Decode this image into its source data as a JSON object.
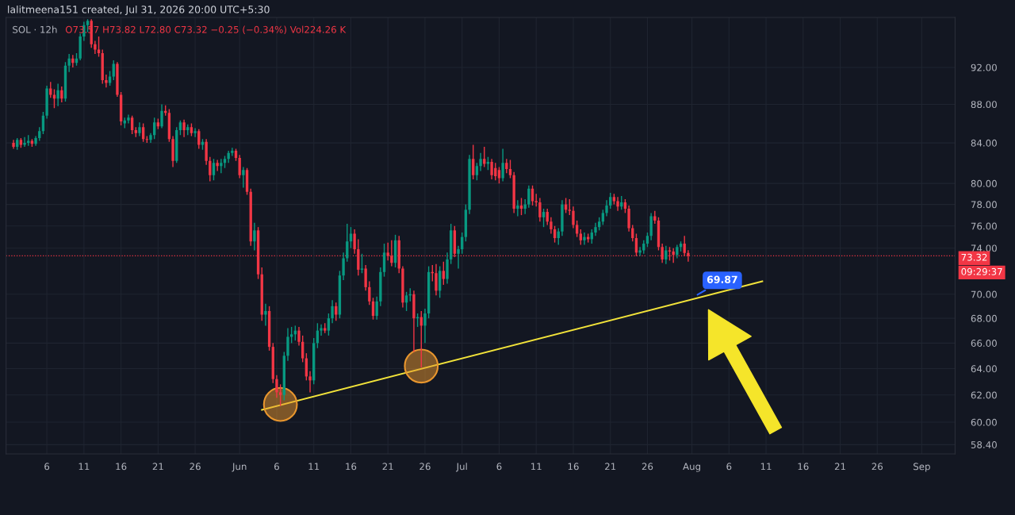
{
  "chart_data": {
    "type": "candlestick",
    "title": "SOL · 12h",
    "subtitle": "O73.57 H73.82 L72.80 C73.32 −0.25 (−0.34%) Vol224.26 K",
    "x": [
      "2026-05-01T12:00",
      "2026-05-02T00:00",
      "2026-05-02T12:00",
      "2026-05-03T00:00",
      "2026-05-03T12:00",
      "2026-05-04T00:00",
      "2026-05-04T12:00",
      "2026-05-05T00:00",
      "2026-05-05T12:00",
      "2026-05-06T00:00",
      "2026-05-06T12:00",
      "2026-05-07T00:00",
      "2026-05-07T12:00",
      "2026-05-08T00:00",
      "2026-05-08T12:00",
      "2026-05-09T00:00",
      "2026-05-09T12:00",
      "2026-05-10T00:00",
      "2026-05-10T12:00",
      "2026-05-11T00:00",
      "2026-05-11T12:00",
      "2026-05-12T00:00",
      "2026-05-12T12:00",
      "2026-05-13T00:00",
      "2026-05-13T12:00",
      "2026-05-14T00:00",
      "2026-05-14T12:00",
      "2026-05-15T00:00",
      "2026-05-15T12:00",
      "2026-05-16T00:00",
      "2026-05-16T12:00",
      "2026-05-17T00:00",
      "2026-05-17T12:00",
      "2026-05-18T00:00",
      "2026-05-18T12:00",
      "2026-05-19T00:00",
      "2026-05-19T12:00",
      "2026-05-20T00:00",
      "2026-05-20T12:00",
      "2026-05-21T00:00",
      "2026-05-21T12:00",
      "2026-05-22T00:00",
      "2026-05-22T12:00",
      "2026-05-23T00:00",
      "2026-05-23T12:00",
      "2026-05-24T00:00",
      "2026-05-24T12:00",
      "2026-05-25T00:00",
      "2026-05-25T12:00",
      "2026-05-26T00:00",
      "2026-05-26T12:00",
      "2026-05-27T00:00",
      "2026-05-27T12:00",
      "2026-05-28T00:00",
      "2026-05-28T12:00",
      "2026-05-29T00:00",
      "2026-05-29T12:00",
      "2026-05-30T00:00",
      "2026-05-30T12:00",
      "2026-05-31T00:00",
      "2026-05-31T12:00",
      "2026-06-01T00:00",
      "2026-06-01T12:00",
      "2026-06-02T00:00",
      "2026-06-02T12:00",
      "2026-06-03T00:00",
      "2026-06-03T12:00",
      "2026-06-04T00:00",
      "2026-06-04T12:00",
      "2026-06-05T00:00",
      "2026-06-05T12:00",
      "2026-06-06T00:00",
      "2026-06-06T12:00",
      "2026-06-07T00:00",
      "2026-06-07T12:00",
      "2026-06-08T00:00",
      "2026-06-08T12:00",
      "2026-06-09T00:00",
      "2026-06-09T12:00",
      "2026-06-10T00:00",
      "2026-06-10T12:00",
      "2026-06-11T00:00",
      "2026-06-11T12:00",
      "2026-06-12T00:00",
      "2026-06-12T12:00",
      "2026-06-13T00:00",
      "2026-06-13T12:00",
      "2026-06-14T00:00",
      "2026-06-14T12:00",
      "2026-06-15T00:00",
      "2026-06-15T12:00",
      "2026-06-16T00:00",
      "2026-06-16T12:00",
      "2026-06-17T00:00",
      "2026-06-17T12:00",
      "2026-06-18T00:00",
      "2026-06-18T12:00",
      "2026-06-19T00:00",
      "2026-06-19T12:00",
      "2026-06-20T00:00",
      "2026-06-20T12:00",
      "2026-06-21T00:00",
      "2026-06-21T12:00",
      "2026-06-22T00:00",
      "2026-06-22T12:00",
      "2026-06-23T00:00",
      "2026-06-23T12:00",
      "2026-06-24T00:00",
      "2026-06-24T12:00",
      "2026-06-25T00:00",
      "2026-06-25T12:00",
      "2026-06-26T00:00",
      "2026-06-26T12:00",
      "2026-06-27T00:00",
      "2026-06-27T12:00",
      "2026-06-28T00:00",
      "2026-06-28T12:00",
      "2026-06-29T00:00",
      "2026-06-29T12:00",
      "2026-06-30T00:00",
      "2026-06-30T12:00",
      "2026-07-01T00:00",
      "2026-07-01T12:00",
      "2026-07-02T00:00",
      "2026-07-02T12:00",
      "2026-07-03T00:00",
      "2026-07-03T12:00",
      "2026-07-04T00:00",
      "2026-07-04T12:00",
      "2026-07-05T00:00",
      "2026-07-05T12:00",
      "2026-07-06T00:00",
      "2026-07-06T12:00",
      "2026-07-07T00:00",
      "2026-07-07T12:00",
      "2026-07-08T00:00",
      "2026-07-08T12:00",
      "2026-07-09T00:00",
      "2026-07-09T12:00",
      "2026-07-10T00:00",
      "2026-07-10T12:00",
      "2026-07-11T00:00",
      "2026-07-11T12:00",
      "2026-07-12T00:00",
      "2026-07-12T12:00",
      "2026-07-13T00:00",
      "2026-07-13T12:00",
      "2026-07-14T00:00",
      "2026-07-14T12:00",
      "2026-07-15T00:00",
      "2026-07-15T12:00",
      "2026-07-16T00:00",
      "2026-07-16T12:00",
      "2026-07-17T00:00",
      "2026-07-17T12:00",
      "2026-07-18T00:00",
      "2026-07-18T12:00",
      "2026-07-19T00:00",
      "2026-07-19T12:00",
      "2026-07-20T00:00",
      "2026-07-20T12:00",
      "2026-07-21T00:00",
      "2026-07-21T12:00",
      "2026-07-22T00:00",
      "2026-07-22T12:00",
      "2026-07-23T00:00",
      "2026-07-23T12:00",
      "2026-07-24T00:00",
      "2026-07-24T12:00",
      "2026-07-25T00:00",
      "2026-07-25T12:00",
      "2026-07-26T00:00",
      "2026-07-26T12:00",
      "2026-07-27T00:00",
      "2026-07-27T12:00",
      "2026-07-28T00:00",
      "2026-07-28T12:00",
      "2026-07-29T00:00",
      "2026-07-29T12:00",
      "2026-07-30T00:00",
      "2026-07-30T12:00",
      "2026-07-31T00:00",
      "2026-07-31T12:00"
    ],
    "ohlc": [
      [
        84.0,
        84.3,
        83.4,
        83.6
      ],
      [
        83.6,
        84.5,
        83.3,
        84.3
      ],
      [
        84.3,
        84.5,
        83.5,
        83.8
      ],
      [
        83.8,
        84.6,
        83.6,
        84.0
      ],
      [
        84.0,
        84.8,
        83.7,
        84.2
      ],
      [
        84.2,
        84.4,
        83.6,
        83.9
      ],
      [
        83.9,
        84.7,
        83.7,
        84.5
      ],
      [
        84.5,
        85.6,
        84.2,
        85.2
      ],
      [
        85.2,
        87.2,
        84.9,
        86.8
      ],
      [
        86.8,
        90.0,
        86.5,
        89.7
      ],
      [
        89.7,
        90.4,
        88.7,
        89.0
      ],
      [
        89.0,
        89.6,
        87.6,
        88.6
      ],
      [
        88.6,
        90.2,
        87.8,
        89.5
      ],
      [
        89.5,
        89.9,
        88.2,
        88.6
      ],
      [
        88.6,
        92.6,
        88.3,
        92.2
      ],
      [
        92.2,
        93.5,
        91.5,
        93.0
      ],
      [
        93.0,
        93.4,
        92.0,
        92.5
      ],
      [
        92.5,
        93.6,
        92.2,
        93.0
      ],
      [
        93.0,
        95.8,
        92.8,
        95.5
      ],
      [
        95.5,
        97.2,
        95.0,
        96.8
      ],
      [
        96.8,
        97.5,
        96.0,
        97.3
      ],
      [
        97.3,
        97.5,
        94.2,
        94.6
      ],
      [
        94.6,
        95.0,
        93.5,
        94.0
      ],
      [
        94.0,
        95.5,
        93.2,
        93.6
      ],
      [
        93.6,
        94.0,
        90.2,
        90.6
      ],
      [
        90.6,
        91.2,
        89.8,
        90.3
      ],
      [
        90.3,
        91.6,
        90.0,
        91.0
      ],
      [
        91.0,
        92.8,
        90.6,
        92.4
      ],
      [
        92.4,
        92.6,
        88.8,
        89.0
      ],
      [
        89.0,
        89.3,
        85.8,
        86.2
      ],
      [
        86.0,
        86.6,
        85.5,
        86.3
      ],
      [
        86.3,
        86.9,
        86.0,
        86.6
      ],
      [
        86.6,
        86.8,
        84.9,
        85.3
      ],
      [
        85.3,
        85.6,
        84.6,
        85.0
      ],
      [
        85.0,
        86.1,
        84.7,
        85.6
      ],
      [
        85.6,
        86.0,
        84.1,
        84.4
      ],
      [
        84.4,
        84.7,
        84.0,
        84.3
      ],
      [
        84.3,
        85.0,
        84.0,
        84.8
      ],
      [
        84.8,
        86.6,
        84.4,
        86.1
      ],
      [
        86.1,
        86.5,
        85.4,
        85.7
      ],
      [
        85.7,
        88.0,
        85.5,
        87.3
      ],
      [
        87.3,
        87.9,
        86.8,
        87.1
      ],
      [
        87.1,
        87.5,
        84.1,
        84.4
      ],
      [
        84.4,
        84.7,
        81.6,
        82.2
      ],
      [
        82.2,
        85.6,
        82.0,
        85.3
      ],
      [
        85.3,
        86.3,
        84.8,
        86.1
      ],
      [
        86.1,
        86.4,
        84.6,
        85.3
      ],
      [
        85.3,
        85.9,
        84.8,
        85.6
      ],
      [
        85.6,
        86.0,
        84.7,
        85.0
      ],
      [
        85.0,
        85.5,
        84.6,
        85.2
      ],
      [
        85.2,
        85.4,
        83.4,
        83.8
      ],
      [
        83.8,
        84.4,
        83.3,
        84.1
      ],
      [
        84.1,
        84.4,
        81.8,
        82.2
      ],
      [
        82.2,
        82.6,
        80.2,
        80.8
      ],
      [
        80.8,
        82.4,
        80.3,
        82.0
      ],
      [
        82.0,
        82.3,
        81.2,
        81.7
      ],
      [
        81.7,
        82.4,
        81.0,
        82.0
      ],
      [
        82.0,
        82.7,
        81.5,
        82.4
      ],
      [
        82.4,
        83.2,
        82.0,
        83.0
      ],
      [
        83.0,
        83.5,
        82.7,
        83.2
      ],
      [
        83.2,
        83.4,
        82.2,
        82.5
      ],
      [
        82.5,
        82.8,
        80.5,
        80.8
      ],
      [
        80.8,
        81.6,
        79.6,
        81.3
      ],
      [
        81.3,
        81.5,
        78.9,
        79.2
      ],
      [
        79.2,
        79.5,
        74.2,
        74.6
      ],
      [
        74.6,
        76.3,
        73.8,
        75.6
      ],
      [
        75.6,
        75.9,
        71.3,
        71.7
      ],
      [
        71.7,
        72.3,
        67.8,
        68.3
      ],
      [
        68.3,
        69.2,
        67.4,
        68.6
      ],
      [
        68.6,
        69.0,
        65.4,
        65.7
      ],
      [
        65.7,
        66.0,
        62.9,
        63.2
      ],
      [
        63.2,
        63.5,
        61.8,
        62.2
      ],
      [
        62.2,
        62.8,
        61.2,
        62.0
      ],
      [
        62.0,
        65.3,
        61.6,
        65.0
      ],
      [
        65.0,
        67.2,
        64.6,
        66.5
      ],
      [
        66.5,
        67.3,
        66.0,
        66.7
      ],
      [
        66.7,
        67.4,
        66.2,
        67.0
      ],
      [
        67.0,
        67.3,
        65.8,
        66.1
      ],
      [
        66.1,
        66.6,
        64.5,
        64.8
      ],
      [
        64.8,
        65.2,
        63.1,
        63.4
      ],
      [
        63.4,
        63.8,
        62.2,
        63.1
      ],
      [
        63.1,
        66.4,
        62.8,
        66.0
      ],
      [
        66.0,
        67.6,
        65.6,
        67.0
      ],
      [
        67.0,
        67.5,
        66.6,
        67.2
      ],
      [
        67.2,
        67.6,
        66.8,
        67.0
      ],
      [
        67.0,
        68.4,
        66.6,
        68.0
      ],
      [
        68.0,
        69.5,
        67.6,
        69.0
      ],
      [
        69.0,
        69.3,
        67.8,
        68.3
      ],
      [
        68.3,
        72.0,
        68.0,
        71.6
      ],
      [
        71.6,
        73.6,
        71.2,
        73.1
      ],
      [
        73.1,
        76.2,
        72.8,
        74.6
      ],
      [
        74.6,
        75.9,
        74.0,
        75.3
      ],
      [
        75.3,
        75.7,
        73.5,
        73.9
      ],
      [
        73.9,
        74.8,
        71.6,
        72.1
      ],
      [
        72.1,
        73.5,
        71.8,
        72.2
      ],
      [
        72.2,
        72.5,
        70.3,
        70.6
      ],
      [
        70.6,
        71.1,
        69.1,
        69.4
      ],
      [
        69.4,
        69.7,
        67.9,
        68.2
      ],
      [
        68.2,
        69.8,
        67.9,
        69.4
      ],
      [
        69.4,
        72.3,
        69.0,
        71.9
      ],
      [
        71.9,
        74.4,
        71.5,
        73.6
      ],
      [
        73.6,
        74.5,
        72.9,
        73.3
      ],
      [
        73.3,
        74.7,
        72.4,
        72.7
      ],
      [
        72.7,
        75.2,
        72.3,
        74.7
      ],
      [
        74.7,
        75.1,
        71.8,
        72.2
      ],
      [
        72.2,
        72.4,
        68.9,
        69.3
      ],
      [
        69.3,
        70.2,
        68.6,
        69.9
      ],
      [
        69.9,
        70.5,
        69.4,
        70.0
      ],
      [
        70.0,
        70.3,
        65.3,
        68.0
      ],
      [
        68.0,
        68.4,
        67.3,
        68.1
      ],
      [
        68.1,
        68.6,
        64.1,
        67.4
      ],
      [
        67.4,
        68.8,
        66.0,
        68.4
      ],
      [
        68.4,
        72.4,
        68.0,
        71.9
      ],
      [
        71.9,
        72.5,
        71.1,
        71.8
      ],
      [
        71.8,
        72.6,
        69.9,
        70.3
      ],
      [
        70.3,
        72.4,
        69.7,
        72.0
      ],
      [
        72.0,
        72.8,
        70.8,
        71.3
      ],
      [
        71.3,
        73.6,
        70.9,
        73.0
      ],
      [
        73.0,
        76.2,
        72.6,
        75.6
      ],
      [
        75.6,
        76.0,
        73.2,
        73.5
      ],
      [
        73.5,
        74.2,
        72.2,
        73.9
      ],
      [
        73.9,
        75.4,
        73.5,
        75.0
      ],
      [
        75.0,
        78.0,
        74.6,
        77.5
      ],
      [
        77.5,
        82.8,
        77.1,
        82.4
      ],
      [
        82.4,
        83.8,
        80.4,
        80.8
      ],
      [
        80.8,
        82.0,
        80.3,
        81.7
      ],
      [
        81.7,
        83.0,
        81.2,
        82.4
      ],
      [
        82.4,
        83.6,
        81.6,
        81.9
      ],
      [
        81.9,
        82.6,
        81.3,
        82.1
      ],
      [
        82.1,
        82.4,
        80.4,
        80.8
      ],
      [
        81.5,
        82.0,
        80.3,
        80.7
      ],
      [
        81.3,
        81.6,
        80.0,
        80.5
      ],
      [
        80.5,
        83.4,
        80.2,
        82.0
      ],
      [
        82.0,
        82.4,
        81.0,
        81.4
      ],
      [
        81.4,
        82.3,
        80.5,
        80.8
      ],
      [
        80.8,
        81.1,
        77.2,
        77.6
      ],
      [
        77.6,
        78.4,
        76.9,
        77.9
      ],
      [
        77.9,
        78.6,
        77.0,
        77.6
      ],
      [
        77.6,
        78.5,
        77.1,
        78.0
      ],
      [
        78.0,
        79.8,
        77.7,
        79.5
      ],
      [
        79.5,
        79.8,
        77.9,
        78.3
      ],
      [
        78.3,
        79.0,
        77.8,
        78.2
      ],
      [
        78.2,
        78.6,
        76.4,
        76.8
      ],
      [
        76.8,
        77.6,
        75.9,
        77.3
      ],
      [
        77.3,
        77.6,
        76.1,
        76.4
      ],
      [
        76.4,
        76.8,
        75.3,
        75.7
      ],
      [
        75.7,
        76.0,
        74.5,
        74.9
      ],
      [
        74.9,
        75.8,
        74.3,
        75.5
      ],
      [
        75.5,
        78.4,
        75.1,
        78.0
      ],
      [
        78.0,
        78.6,
        77.2,
        77.5
      ],
      [
        77.5,
        78.5,
        77.0,
        77.4
      ],
      [
        77.4,
        77.8,
        75.8,
        76.1
      ],
      [
        76.1,
        76.5,
        75.0,
        75.3
      ],
      [
        75.3,
        75.7,
        74.3,
        74.7
      ],
      [
        74.7,
        75.4,
        74.3,
        75.0
      ],
      [
        75.0,
        75.3,
        74.5,
        74.8
      ],
      [
        74.8,
        75.7,
        74.4,
        75.4
      ],
      [
        75.4,
        76.3,
        75.1,
        75.9
      ],
      [
        75.9,
        76.8,
        75.6,
        76.4
      ],
      [
        76.4,
        77.5,
        76.1,
        77.2
      ],
      [
        77.2,
        78.4,
        76.9,
        77.9
      ],
      [
        77.9,
        79.1,
        77.6,
        78.7
      ],
      [
        78.7,
        79.0,
        78.0,
        78.3
      ],
      [
        78.3,
        78.7,
        77.4,
        77.8
      ],
      [
        77.8,
        78.8,
        77.5,
        78.2
      ],
      [
        78.2,
        78.5,
        77.2,
        77.6
      ],
      [
        77.6,
        77.9,
        75.5,
        75.8
      ],
      [
        75.8,
        76.1,
        74.6,
        74.9
      ],
      [
        74.9,
        75.3,
        73.3,
        73.6
      ],
      [
        73.6,
        74.1,
        73.3,
        73.8
      ],
      [
        73.8,
        74.7,
        73.5,
        74.4
      ],
      [
        74.4,
        75.4,
        74.1,
        75.1
      ],
      [
        75.1,
        77.2,
        74.7,
        76.9
      ],
      [
        76.9,
        77.4,
        76.2,
        76.5
      ],
      [
        76.5,
        76.8,
        73.8,
        74.1
      ],
      [
        74.1,
        74.4,
        72.7,
        73.0
      ],
      [
        73.0,
        74.2,
        72.6,
        73.8
      ],
      [
        73.8,
        74.1,
        72.9,
        73.7
      ],
      [
        73.7,
        74.0,
        72.7,
        73.4
      ],
      [
        73.4,
        74.3,
        73.1,
        74.1
      ],
      [
        74.1,
        74.6,
        73.7,
        74.4
      ],
      [
        74.4,
        75.1,
        73.3,
        73.57
      ],
      [
        73.57,
        73.82,
        72.8,
        73.32
      ]
    ],
    "colors": [
      "#f23645",
      "#089981",
      "#f23645",
      "#089981",
      "#089981",
      "#f23645",
      "#089981",
      "#089981",
      "#089981",
      "#089981",
      "#f23645",
      "#f23645",
      "#089981",
      "#f23645",
      "#089981",
      "#089981",
      "#f23645",
      "#089981",
      "#089981",
      "#089981",
      "#089981",
      "#f23645",
      "#f23645",
      "#f23645",
      "#f23645",
      "#f23645",
      "#089981",
      "#089981",
      "#f23645",
      "#f23645",
      "#089981",
      "#089981",
      "#f23645",
      "#f23645",
      "#089981",
      "#f23645",
      "#f23645",
      "#089981",
      "#089981",
      "#f23645",
      "#089981",
      "#f23645",
      "#f23645",
      "#f23645",
      "#089981",
      "#089981",
      "#f23645",
      "#089981",
      "#f23645",
      "#089981",
      "#f23645",
      "#089981",
      "#f23645",
      "#f23645",
      "#089981",
      "#f23645",
      "#089981",
      "#089981",
      "#089981",
      "#089981",
      "#f23645",
      "#f23645",
      "#089981",
      "#f23645",
      "#f23645",
      "#089981",
      "#f23645",
      "#f23645",
      "#089981",
      "#f23645",
      "#f23645",
      "#f23645",
      "#f23645",
      "#089981",
      "#089981",
      "#089981",
      "#089981",
      "#f23645",
      "#f23645",
      "#f23645",
      "#f23645",
      "#089981",
      "#089981",
      "#089981",
      "#f23645",
      "#089981",
      "#089981",
      "#f23645",
      "#089981",
      "#089981",
      "#089981",
      "#089981",
      "#f23645",
      "#f23645",
      "#089981",
      "#f23645",
      "#f23645",
      "#f23645",
      "#089981",
      "#089981",
      "#089981",
      "#f23645",
      "#f23645",
      "#089981",
      "#f23645",
      "#f23645",
      "#089981",
      "#089981",
      "#f23645",
      "#089981",
      "#f23645",
      "#089981",
      "#089981",
      "#f23645",
      "#f23645",
      "#089981",
      "#f23645",
      "#089981",
      "#089981",
      "#f23645",
      "#089981",
      "#089981",
      "#089981",
      "#089981",
      "#f23645",
      "#089981",
      "#089981",
      "#f23645",
      "#089981",
      "#f23645",
      "#f23645",
      "#f23645",
      "#089981",
      "#f23645",
      "#f23645",
      "#f23645",
      "#089981",
      "#f23645",
      "#089981",
      "#089981",
      "#f23645",
      "#f23645",
      "#f23645",
      "#089981",
      "#f23645",
      "#f23645",
      "#f23645",
      "#089981",
      "#089981",
      "#f23645",
      "#f23645",
      "#f23645",
      "#f23645",
      "#f23645",
      "#089981",
      "#f23645",
      "#089981",
      "#089981",
      "#089981",
      "#089981",
      "#089981",
      "#089981",
      "#f23645",
      "#f23645",
      "#089981",
      "#f23645",
      "#f23645",
      "#f23645",
      "#f23645",
      "#089981",
      "#089981",
      "#089981",
      "#089981",
      "#f23645",
      "#f23645",
      "#f23645",
      "#089981",
      "#f23645",
      "#f23645",
      "#089981",
      "#089981",
      "#f23645",
      "#f23645"
    ],
    "series": [
      {
        "type": "line",
        "color": "#f2e33a",
        "line_style": "solid",
        "x": [
          "2026-06-04T00:00",
          "2026-08-10T12:00"
        ],
        "values": [
          60.9,
          71.1
        ]
      },
      {
        "type": "scatter",
        "color": "#e8962e",
        "marker": "circle",
        "x": [
          "2026-06-06T12:00",
          "2026-06-25T12:00"
        ],
        "values": [
          61.3,
          64.2
        ]
      }
    ],
    "log": "y",
    "xlim": [
      "2026-04-30T12:00",
      "2026-09-05T12:00"
    ],
    "xticks": [
      {
        "value": "2026-05-06",
        "label": "6"
      },
      {
        "value": "2026-05-11",
        "label": "11"
      },
      {
        "value": "2026-05-16",
        "label": "16"
      },
      {
        "value": "2026-05-21",
        "label": "21"
      },
      {
        "value": "2026-05-26",
        "label": "26"
      },
      {
        "value": "2026-06-01",
        "label": "Jun"
      },
      {
        "value": "2026-06-06",
        "label": "6"
      },
      {
        "value": "2026-06-11",
        "label": "11"
      },
      {
        "value": "2026-06-16",
        "label": "16"
      },
      {
        "value": "2026-06-21",
        "label": "21"
      },
      {
        "value": "2026-06-26",
        "label": "26"
      },
      {
        "value": "2026-07-01",
        "label": "Jul"
      },
      {
        "value": "2026-07-06",
        "label": "6"
      },
      {
        "value": "2026-07-11",
        "label": "11"
      },
      {
        "value": "2026-07-16",
        "label": "16"
      },
      {
        "value": "2026-07-21",
        "label": "21"
      },
      {
        "value": "2026-07-26",
        "label": "26"
      },
      {
        "value": "2026-08-01",
        "label": "Aug"
      },
      {
        "value": "2026-08-06",
        "label": "6"
      },
      {
        "value": "2026-08-11",
        "label": "11"
      },
      {
        "value": "2026-08-16",
        "label": "16"
      },
      {
        "value": "2026-08-21",
        "label": "21"
      },
      {
        "value": "2026-08-26",
        "label": "26"
      },
      {
        "value": "2026-09-01",
        "label": "Sep"
      }
    ],
    "ylim": [
      57.75,
      97.7
    ],
    "yticks": [
      {
        "value": 58.4,
        "label": "58.40"
      },
      {
        "value": 60,
        "label": "60.00"
      },
      {
        "value": 62,
        "label": "62.00"
      },
      {
        "value": 64,
        "label": "64.00"
      },
      {
        "value": 66,
        "label": "66.00"
      },
      {
        "value": 68,
        "label": "68.00"
      },
      {
        "value": 70,
        "label": "70.00"
      },
      {
        "value": 74,
        "label": "74.00"
      },
      {
        "value": 76,
        "label": "76.00"
      },
      {
        "value": 78,
        "label": "78.00"
      },
      {
        "value": 80,
        "label": "80.00"
      },
      {
        "value": 84,
        "label": "84.00"
      },
      {
        "value": 88,
        "label": "88.00"
      },
      {
        "value": 92,
        "label": "92.00"
      }
    ],
    "grid": true,
    "ref_lines": [
      {
        "axis": "y",
        "value": 73.32,
        "label": "73.32",
        "color": "#f23645",
        "line_style": "dotted"
      }
    ],
    "annotations": [
      "lalitmeena151 created, Jul 31, 2026 20:00 UTC+5:30",
      "09:29:37",
      {
        "text": "69.87",
        "x": "2026-08-01T12:00",
        "y": 69.87
      }
    ]
  }
}
